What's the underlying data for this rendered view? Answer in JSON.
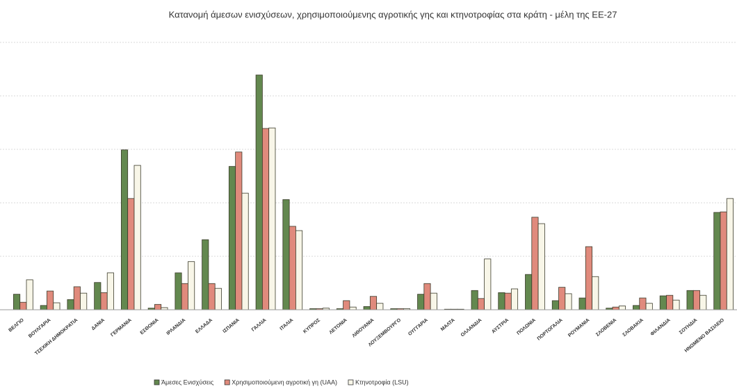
{
  "chart_data": {
    "type": "bar",
    "title": "Κατανομή άμεσων ενισχύσεων, χρησιμοποιούμενης αγροτικής γης και κτηνοτροφίας στα κράτη - μέλη της ΕΕ-27",
    "categories": [
      "ΒΕΛΓΙΟ",
      "ΒΟΥΛΓΑΡΙΑ",
      "ΤΣΕΧΙΚΗ ΔΗΜΟΚΡΑΤΙΑ",
      "ΔΑΝΙΑ",
      "ΓΕΡΜΑΝΙΑ",
      "ΕΣΘΟΝΙΑ",
      "ΙΡΛΑΝΔΙΑ",
      "ΕΛΛΑΔΑ",
      "ΙΣΠΑΝΙΑ",
      "ΓΑΛΛΙΑ",
      "ΙΤΑΛΙΑ",
      "ΚΥΠΡΟΣ",
      "ΛΕΤΟΝΙΑ",
      "ΛΙΘΟΥΑΝΙΑ",
      "ΛΟΥΞΕΜΒΟΥΡΓΟ",
      "ΟΥΓΓΑΡΙΑ",
      "ΜΑΛΤΑ",
      "ΟΛΛΑΝΔΙΑ",
      "ΑΥΣΤΡΙΑ",
      "ΠΟΛΩΝΙΑ",
      "ΠΟΡΤΟΓΑΛΙΑ",
      "ΡΟΥΜΑΝΙΑ",
      "ΣΛΟΒΕΝΙΑ",
      "ΣΛΟΒΑΚΙΑ",
      "ΦΙΛΑΝΔΙΑ",
      "ΣΟΥΗΔΙΑ",
      "ΗΝΩΜΕΝΟ ΒΑΣΙΛΕΙΟ"
    ],
    "series": [
      {
        "name": "Άμεσες Ενισχύσεις",
        "color": "#63884f",
        "values": [
          0.29,
          0.08,
          0.19,
          0.51,
          2.99,
          0.03,
          0.69,
          1.31,
          2.68,
          4.39,
          2.06,
          0.02,
          0.02,
          0.06,
          0.02,
          0.29,
          0.01,
          0.36,
          0.32,
          0.66,
          0.17,
          0.22,
          0.03,
          0.08,
          0.26,
          0.36,
          1.82
        ]
      },
      {
        "name": "Χρησιμοποιούμενη αγροτική γη (UAA)",
        "color": "#e08a7c",
        "values": [
          0.14,
          0.35,
          0.43,
          0.32,
          2.08,
          0.1,
          0.49,
          0.49,
          2.95,
          3.39,
          1.56,
          0.02,
          0.17,
          0.25,
          0.02,
          0.49,
          0.01,
          0.21,
          0.31,
          1.73,
          0.42,
          1.18,
          0.05,
          0.22,
          0.27,
          0.36,
          1.83
        ]
      },
      {
        "name": "Κτηνοτροφία (LSU)",
        "color": "#f8f6e8",
        "values": [
          0.56,
          0.13,
          0.31,
          0.69,
          2.7,
          0.04,
          0.9,
          0.4,
          2.18,
          3.4,
          1.48,
          0.03,
          0.05,
          0.12,
          0.02,
          0.31,
          0.01,
          0.95,
          0.39,
          1.61,
          0.3,
          0.62,
          0.07,
          0.12,
          0.18,
          0.27,
          2.08
        ]
      }
    ],
    "ylim": [
      0,
      5
    ],
    "yticks": [
      0,
      1,
      2,
      3,
      4,
      5
    ],
    "grid": true
  }
}
